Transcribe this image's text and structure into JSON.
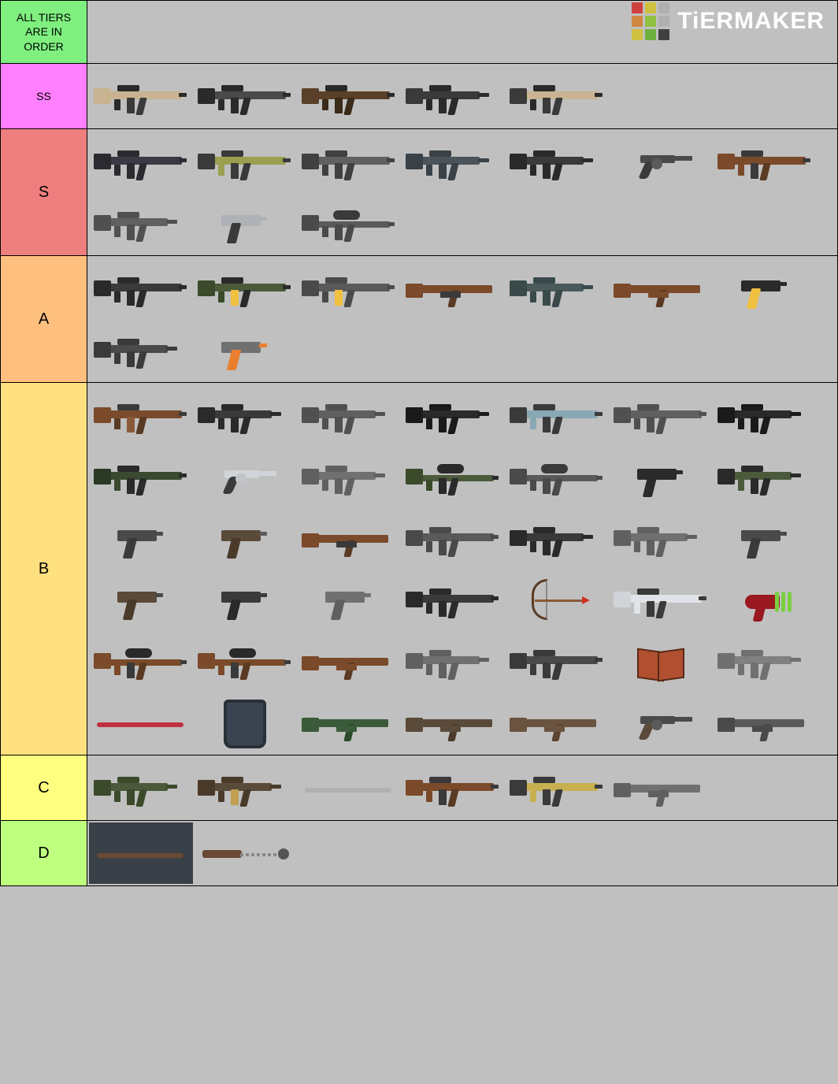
{
  "header": {
    "note": "ALL TIERS ARE IN ORDER",
    "note_bg": "#7fef7f",
    "brand": "TiERMAKER",
    "logo_colors": [
      "#d04040",
      "#d0c040",
      "#b0b0b0",
      "#d08840",
      "#90c040",
      "#b0b0b0",
      "#d0c040",
      "#70b040",
      "#404040"
    ]
  },
  "tiers": [
    {
      "label": "SS",
      "label_fontsize": 14,
      "bg": "#ff7fff",
      "items": [
        {
          "shape": "rifle",
          "body": "#c8b490",
          "stock": "#c8b490",
          "grip": "#3a3a3a",
          "mag": "#3a3a3a",
          "barrel": "#2a2a2a",
          "sight": "#2a2a2a",
          "fore": "#2a2a2a"
        },
        {
          "shape": "rifle",
          "body": "#4a4a4a",
          "stock": "#2a2a2a",
          "grip": "#2a2a2a",
          "mag": "#2a2a2a",
          "barrel": "#2a2a2a",
          "sight": "#2a2a2a",
          "fore": "#2a2a2a"
        },
        {
          "shape": "rifle",
          "body": "#5a4028",
          "stock": "#5a4028",
          "grip": "#3a2a1a",
          "mag": "#3a2a1a",
          "barrel": "#2a2a2a",
          "sight": "#2a2a2a",
          "fore": "#3a2a1a"
        },
        {
          "shape": "smg",
          "body": "#3a3a3a",
          "stock": "#3a3a3a",
          "grip": "#2a2a2a",
          "mag": "#2a2a2a",
          "barrel": "#2a2a2a",
          "sight": "#2a2a2a",
          "fore": "#2a2a2a"
        },
        {
          "shape": "rifle",
          "body": "#c8b490",
          "stock": "#3a3a3a",
          "grip": "#3a3a3a",
          "mag": "#3a3a3a",
          "barrel": "#2a2a2a",
          "sight": "#2a2a2a",
          "fore": "#2a2a2a"
        }
      ]
    },
    {
      "label": "S",
      "label_fontsize": 20,
      "bg": "#ef7f7f",
      "items": [
        {
          "shape": "rifle",
          "body": "#3a3a44",
          "stock": "#2a2a30",
          "grip": "#2a2a30",
          "mag": "#2a2a30",
          "barrel": "#2a2a30",
          "sight": "#2a2a30",
          "fore": "#2a2a30"
        },
        {
          "shape": "rifle",
          "body": "#9aa050",
          "stock": "#3a3a3a",
          "grip": "#3a3a3a",
          "mag": "#3a3a3a",
          "barrel": "#3a3a3a",
          "sight": "#3a3a3a",
          "fore": "#9aa050"
        },
        {
          "shape": "rifle",
          "body": "#606060",
          "stock": "#404040",
          "grip": "#404040",
          "mag": "#404040",
          "barrel": "#404040",
          "sight": "#404040",
          "fore": "#404040"
        },
        {
          "shape": "smg",
          "body": "#4a545a",
          "stock": "#3a4248",
          "grip": "#3a4248",
          "mag": "#3a4248",
          "barrel": "#3a4248",
          "sight": "#3a4248",
          "fore": "#3a4248"
        },
        {
          "shape": "smg",
          "body": "#3a3a3a",
          "stock": "#2a2a2a",
          "grip": "#2a2a2a",
          "mag": "#2a2a2a",
          "barrel": "#2a2a2a",
          "sight": "#2a2a2a",
          "fore": "#2a2a2a"
        },
        {
          "shape": "revolver",
          "body": "#4a4a4a",
          "grip": "#3a3a3a",
          "mag": "#5a5a5a",
          "barrel": "#4a4a4a"
        },
        {
          "shape": "rifle",
          "body": "#7a4a2a",
          "stock": "#7a4a2a",
          "grip": "#5a3a24",
          "mag": "#3a3a3a",
          "barrel": "#3a3a3a",
          "sight": "#3a3a3a",
          "fore": "#7a4a2a"
        },
        {
          "shape": "smg",
          "body": "#606060",
          "stock": "#505050",
          "grip": "#505050",
          "mag": "#505050",
          "barrel": "#505050",
          "sight": "#505050",
          "fore": "#505050"
        },
        {
          "shape": "pistol",
          "body": "#aeb2b6",
          "grip": "#3a3a3a",
          "barrel": "#aeb2b6"
        },
        {
          "shape": "sniper",
          "body": "#5a5a5a",
          "stock": "#4a4a4a",
          "grip": "#4a4a4a",
          "mag": "#4a4a4a",
          "barrel": "#4a4a4a",
          "sight": "#3a3a3a",
          "fore": "#4a4a4a"
        }
      ]
    },
    {
      "label": "A",
      "label_fontsize": 20,
      "bg": "#ffc07f",
      "items": [
        {
          "shape": "rifle",
          "body": "#3a3a3a",
          "stock": "#2a2a2a",
          "grip": "#2a2a2a",
          "mag": "#2a2a2a",
          "barrel": "#2a2a2a",
          "sight": "#2a2a2a",
          "fore": "#2a2a2a"
        },
        {
          "shape": "rifle",
          "body": "#4a5a3a",
          "stock": "#3a4a2a",
          "grip": "#2a2a2a",
          "mag": "#f0c040",
          "barrel": "#2a2a2a",
          "sight": "#2a2a2a",
          "fore": "#3a4a2a"
        },
        {
          "shape": "rifle",
          "body": "#5a5a5a",
          "stock": "#4a4a4a",
          "grip": "#4a4a4a",
          "mag": "#f0c040",
          "barrel": "#4a4a4a",
          "sight": "#4a4a4a",
          "fore": "#4a4a4a"
        },
        {
          "shape": "shotgun",
          "body": "#7a4a2a",
          "stock": "#7a4a2a",
          "grip": "#5a3a24",
          "fore": "#3a3a3a",
          "barrel": "#3a3a3a"
        },
        {
          "shape": "smg",
          "body": "#4a5a5a",
          "stock": "#3a4a4a",
          "grip": "#3a4a4a",
          "mag": "#3a4a4a",
          "barrel": "#3a4a4a",
          "sight": "#3a4a4a",
          "fore": "#3a4a4a"
        },
        {
          "shape": "shotgun",
          "body": "#7a4a2a",
          "stock": "#7a4a2a",
          "grip": "#5a3a24",
          "fore": "#7a4a2a",
          "barrel": "#3a3a3a"
        },
        {
          "shape": "pistol",
          "body": "#2a2a2a",
          "grip": "#f0c040",
          "barrel": "#2a2a2a"
        },
        {
          "shape": "smg",
          "body": "#4a4a4a",
          "stock": "#3a3a3a",
          "grip": "#3a3a3a",
          "mag": "#3a3a3a",
          "barrel": "#3a3a3a",
          "sight": "#3a3a3a",
          "fore": "#3a3a3a"
        },
        {
          "shape": "pistol",
          "body": "#707070",
          "grip": "#e88030",
          "barrel": "#e88030",
          "mag": "#5050c0"
        }
      ]
    },
    {
      "label": "B",
      "label_fontsize": 20,
      "bg": "#ffe07f",
      "items": [
        {
          "shape": "rifle",
          "body": "#7a4a2a",
          "stock": "#7a4a2a",
          "grip": "#5a3a24",
          "mag": "#8a5a3a",
          "barrel": "#3a3a3a",
          "sight": "#3a3a3a",
          "fore": "#5a3a24"
        },
        {
          "shape": "smg",
          "body": "#3a3a3a",
          "stock": "#2a2a2a",
          "grip": "#2a2a2a",
          "mag": "#2a2a2a",
          "barrel": "#2a2a2a",
          "sight": "#2a2a2a",
          "fore": "#2a2a2a"
        },
        {
          "shape": "smg",
          "body": "#606060",
          "stock": "#505050",
          "grip": "#505050",
          "mag": "#505050",
          "barrel": "#505050",
          "sight": "#505050",
          "fore": "#505050"
        },
        {
          "shape": "smg",
          "body": "#2a2a2a",
          "stock": "#1a1a1a",
          "grip": "#1a1a1a",
          "mag": "#1a1a1a",
          "barrel": "#1a1a1a",
          "sight": "#1a1a1a",
          "fore": "#1a1a1a"
        },
        {
          "shape": "rifle",
          "body": "#8aa8b4",
          "stock": "#3a3a3a",
          "grip": "#3a3a3a",
          "mag": "#3a3a3a",
          "barrel": "#3a3a3a",
          "sight": "#3a3a3a",
          "fore": "#8aa8b4"
        },
        {
          "shape": "rifle",
          "body": "#606060",
          "stock": "#505050",
          "grip": "#505050",
          "mag": "#505050",
          "barrel": "#505050",
          "sight": "#505050",
          "fore": "#505050"
        },
        {
          "shape": "smg",
          "body": "#2a2a2a",
          "stock": "#1a1a1a",
          "grip": "#1a1a1a",
          "mag": "#1a1a1a",
          "barrel": "#1a1a1a",
          "sight": "#1a1a1a",
          "fore": "#1a1a1a"
        },
        {
          "shape": "rifle",
          "body": "#3a4a30",
          "stock": "#2a3a24",
          "grip": "#2a2a2a",
          "mag": "#2a2a2a",
          "barrel": "#2a2a2a",
          "sight": "#2a2a2a",
          "fore": "#3a4a30"
        },
        {
          "shape": "revolver",
          "body": "#d0d4d8",
          "grip": "#3a3a3a",
          "mag": "#c0c4c8",
          "barrel": "#d0d4d8"
        },
        {
          "shape": "smg",
          "body": "#707070",
          "stock": "#606060",
          "grip": "#606060",
          "mag": "#606060",
          "barrel": "#606060",
          "sight": "#606060",
          "fore": "#606060"
        },
        {
          "shape": "sniper",
          "body": "#4a5a3a",
          "stock": "#3a4a2a",
          "grip": "#2a2a2a",
          "mag": "#2a2a2a",
          "barrel": "#2a2a2a",
          "sight": "#2a2a2a",
          "fore": "#3a4a2a"
        },
        {
          "shape": "sniper",
          "body": "#5a5a5a",
          "stock": "#4a4a4a",
          "grip": "#4a4a4a",
          "mag": "#4a4a4a",
          "barrel": "#4a4a4a",
          "sight": "#3a3a3a",
          "fore": "#4a4a4a"
        },
        {
          "shape": "pistol",
          "body": "#2a2a2a",
          "grip": "#2a2a2a",
          "barrel": "#2a2a2a"
        },
        {
          "shape": "smg",
          "body": "#4a5a3a",
          "stock": "#2a2a2a",
          "grip": "#2a2a2a",
          "mag": "#2a2a2a",
          "barrel": "#2a2a2a",
          "sight": "#2a2a2a",
          "fore": "#4a5a3a"
        },
        {
          "shape": "pistol",
          "body": "#4a4a4a",
          "grip": "#3a3a3a",
          "barrel": "#4a4a4a"
        },
        {
          "shape": "pistol",
          "body": "#5a4a3a",
          "grip": "#4a3a2a",
          "barrel": "#5a5a5a"
        },
        {
          "shape": "shotgun",
          "body": "#7a4a2a",
          "stock": "#7a4a2a",
          "grip": "#5a3a24",
          "fore": "#3a3a3a",
          "barrel": "#3a3a3a"
        },
        {
          "shape": "rifle",
          "body": "#5a5a5a",
          "stock": "#4a4a4a",
          "grip": "#4a4a4a",
          "mag": "#4a4a4a",
          "barrel": "#4a4a4a",
          "sight": "#4a4a4a",
          "fore": "#4a4a4a"
        },
        {
          "shape": "smg",
          "body": "#3a3a3a",
          "stock": "#2a2a2a",
          "grip": "#2a2a2a",
          "mag": "#2a2a2a",
          "barrel": "#2a2a2a",
          "sight": "#2a2a2a",
          "fore": "#2a2a2a"
        },
        {
          "shape": "smg",
          "body": "#707070",
          "stock": "#606060",
          "grip": "#606060",
          "mag": "#606060",
          "barrel": "#606060",
          "sight": "#606060",
          "fore": "#606060"
        },
        {
          "shape": "pistol",
          "body": "#4a4a4a",
          "grip": "#3a3a3a",
          "barrel": "#4a4a4a"
        },
        {
          "shape": "pistol",
          "body": "#5a4a3a",
          "grip": "#4a3a2a",
          "barrel": "#4a4a4a"
        },
        {
          "shape": "pistol",
          "body": "#3a3a3a",
          "grip": "#2a2a2a",
          "barrel": "#3a3a3a"
        },
        {
          "shape": "pistol",
          "body": "#707070",
          "grip": "#606060",
          "barrel": "#707070"
        },
        {
          "shape": "rifle",
          "body": "#3a3a3a",
          "stock": "#2a2a2a",
          "grip": "#2a2a2a",
          "mag": "#2a2a2a",
          "barrel": "#2a2a2a",
          "sight": "#2a2a2a",
          "fore": "#2a2a2a"
        },
        {
          "shape": "bow"
        },
        {
          "shape": "rifle",
          "body": "#e0e4e8",
          "stock": "#d0d4d8",
          "grip": "#3a3a3a",
          "mag": "#3a3a3a",
          "barrel": "#3a3a3a",
          "sight": "#3a3a3a",
          "fore": "#e0e4e8"
        },
        {
          "shape": "raygun"
        },
        {
          "shape": "sniper",
          "body": "#7a4a2a",
          "stock": "#7a4a2a",
          "grip": "#5a3a24",
          "mag": "#3a3a3a",
          "barrel": "#3a3a3a",
          "sight": "#2a2a2a",
          "fore": "#7a4a2a"
        },
        {
          "shape": "sniper",
          "body": "#7a4a2a",
          "stock": "#7a4a2a",
          "grip": "#5a3a24",
          "mag": "#3a3a3a",
          "barrel": "#3a3a3a",
          "sight": "#2a2a2a",
          "fore": "#7a4a2a"
        },
        {
          "shape": "shotgun",
          "body": "#7a4a2a",
          "stock": "#7a4a2a",
          "grip": "#5a3a24",
          "fore": "#7a4a2a",
          "barrel": "#3a3a3a"
        },
        {
          "shape": "smg",
          "body": "#707070",
          "stock": "#606060",
          "grip": "#606060",
          "mag": "#606060",
          "barrel": "#606060",
          "sight": "#606060",
          "fore": "#606060"
        },
        {
          "shape": "rifle",
          "body": "#4a4a4a",
          "stock": "#3a3a3a",
          "grip": "#3a3a3a",
          "mag": "#3a3a3a",
          "barrel": "#3a3a3a",
          "sight": "#3a3a3a",
          "fore": "#3a3a3a"
        },
        {
          "shape": "book"
        },
        {
          "shape": "smg",
          "body": "#808080",
          "stock": "#707070",
          "grip": "#707070",
          "mag": "#707070",
          "barrel": "#707070",
          "sight": "#707070",
          "fore": "#707070"
        },
        {
          "shape": "melee",
          "body": "#c03040",
          "barrel": "#3050c0"
        },
        {
          "shape": "shield"
        },
        {
          "shape": "shotgun",
          "body": "#3a5a3a",
          "stock": "#3a5a3a",
          "grip": "#2a4a2a",
          "fore": "#3a5a3a",
          "barrel": "#2a2a2a"
        },
        {
          "shape": "shotgun",
          "body": "#5a4a3a",
          "stock": "#5a4a3a",
          "grip": "#4a3a2a",
          "fore": "#5a4a3a",
          "barrel": "#3a3a3a"
        },
        {
          "shape": "shotgun",
          "body": "#6a5440",
          "stock": "#6a5440",
          "grip": "#5a4430",
          "fore": "#6a5440",
          "barrel": "#3a3a3a"
        },
        {
          "shape": "revolver",
          "body": "#4a4a4a",
          "grip": "#5a4a3a",
          "mag": "#5a5a5a",
          "barrel": "#4a4a4a"
        },
        {
          "shape": "shotgun",
          "body": "#5a5a5a",
          "stock": "#4a4a4a",
          "grip": "#4a4a4a",
          "fore": "#4a4a4a",
          "barrel": "#4a4a4a"
        }
      ]
    },
    {
      "label": "C",
      "label_fontsize": 20,
      "bg": "#feff7f",
      "items": [
        {
          "shape": "smg",
          "body": "#4a5a3a",
          "stock": "#3a4a2a",
          "grip": "#3a4a2a",
          "mag": "#3a4a2a",
          "barrel": "#3a4a2a",
          "sight": "#3a4a2a",
          "fore": "#3a4a2a"
        },
        {
          "shape": "smg",
          "body": "#5a4a3a",
          "stock": "#4a3a2a",
          "grip": "#4a3a2a",
          "mag": "#c0a050",
          "barrel": "#4a3a2a",
          "sight": "#4a3a2a",
          "fore": "#4a3a2a"
        },
        {
          "shape": "melee",
          "body": "#b0b0b0"
        },
        {
          "shape": "rifle",
          "body": "#7a4a2a",
          "stock": "#7a4a2a",
          "grip": "#5a3a24",
          "mag": "#3a3a3a",
          "barrel": "#3a3a3a",
          "sight": "#3a3a3a",
          "fore": "#7a4a2a"
        },
        {
          "shape": "rifle",
          "body": "#c8b050",
          "stock": "#3a3a3a",
          "grip": "#3a3a3a",
          "mag": "#3a3a3a",
          "barrel": "#3a3a3a",
          "sight": "#3a3a3a",
          "fore": "#c8b050"
        },
        {
          "shape": "shotgun",
          "body": "#707070",
          "stock": "#606060",
          "grip": "#606060",
          "fore": "#606060",
          "barrel": "#606060"
        }
      ]
    },
    {
      "label": "D",
      "label_fontsize": 20,
      "bg": "#bfff7f",
      "items": [
        {
          "shape": "melee",
          "body": "#6a4a34",
          "cellbg": "#3a4048"
        },
        {
          "shape": "flail"
        }
      ]
    }
  ]
}
